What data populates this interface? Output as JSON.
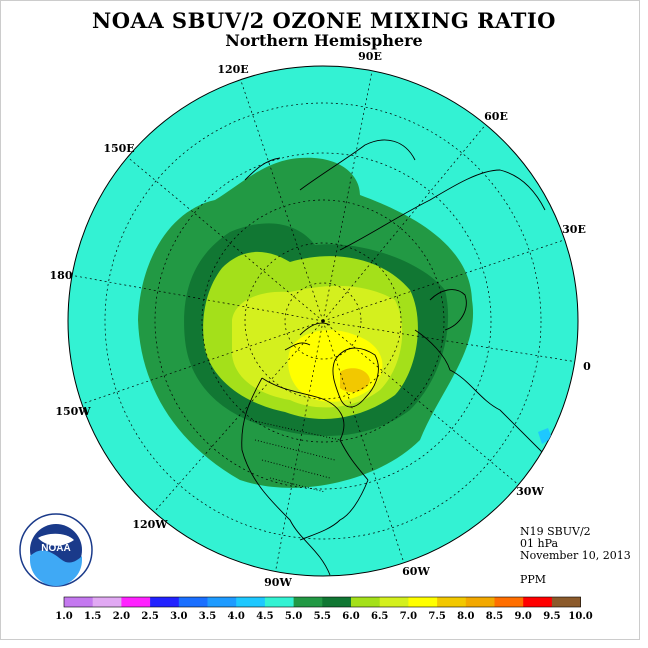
{
  "header": {
    "title": "NOAA SBUV/2 OZONE MIXING RATIO",
    "subtitle": "Northern Hemisphere"
  },
  "info": {
    "satellite": "N19 SBUV/2",
    "level": "01 hPa",
    "date": "November 10, 2013",
    "units": "PPM"
  },
  "logo": {
    "text": "NOAA",
    "ring_text": "NATIONAL OCEANIC AND ATMOSPHERIC ADMINISTRATION U.S. DEPARTMENT OF COMMERCE"
  },
  "map": {
    "projection": "polar-stereographic-north",
    "longitude_labels": [
      "90E",
      "60E",
      "30E",
      "0",
      "30W",
      "60W",
      "90W",
      "120W",
      "150W",
      "180",
      "150E",
      "120E"
    ],
    "ocean_color": "#33f2d3"
  },
  "colorbar": {
    "ticks": [
      "1.0",
      "1.5",
      "2.0",
      "2.5",
      "3.0",
      "3.5",
      "4.0",
      "4.5",
      "5.0",
      "5.5",
      "6.0",
      "6.5",
      "7.0",
      "7.5",
      "8.0",
      "8.5",
      "9.0",
      "9.5",
      "10.0"
    ],
    "colors": [
      "#c479ef",
      "#e1a9f3",
      "#ff22ff",
      "#2222ff",
      "#1a6fff",
      "#1e9bff",
      "#1ec8ff",
      "#33f2d3",
      "#229944",
      "#117733",
      "#a4e01a",
      "#d4f01e",
      "#ffff00",
      "#f2c800",
      "#f2a800",
      "#ff6e00",
      "#ff0000",
      "#8b5a2b"
    ]
  }
}
